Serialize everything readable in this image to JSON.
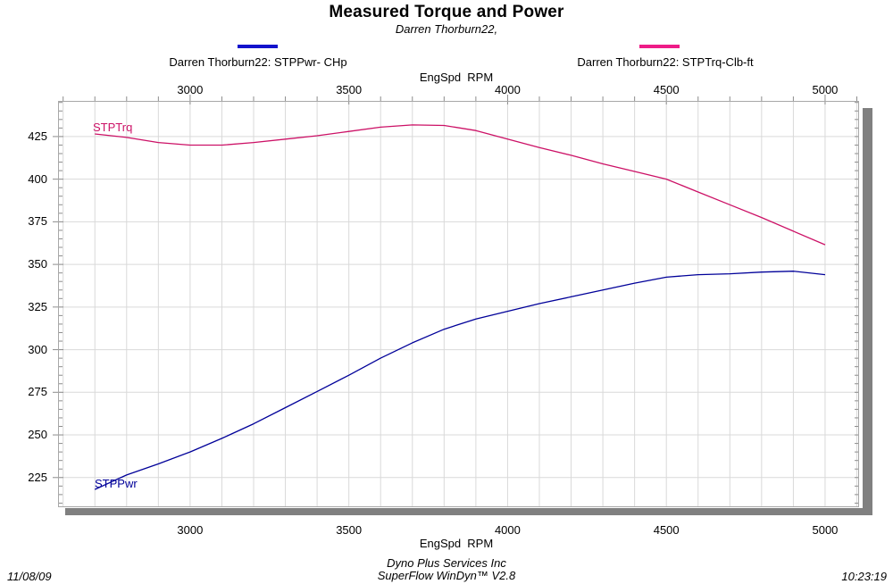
{
  "chart_data": {
    "type": "line",
    "title": "Measured Torque and Power",
    "subtitle": "Darren Thorburn22,",
    "xlabel": "EngSpd  RPM",
    "xlabel_top": "EngSpd  RPM",
    "ylabel": "",
    "x_ticks": [
      3000,
      3500,
      4000,
      4500,
      5000
    ],
    "y_ticks": [
      425,
      400,
      375,
      350,
      325,
      300,
      275,
      250,
      225
    ],
    "xlim": [
      2584,
      5107
    ],
    "ylim": [
      207.6,
      445.9
    ],
    "grid": {
      "x_minor_step": 100,
      "y_minor_step": 5,
      "y_major_step": 25,
      "grid_color": "#d9d9d9",
      "frame_color": "#a8a8a8",
      "tick_color": "#8c8c8c",
      "shadow_color": "#808080"
    },
    "legend_position": "top",
    "legend": [
      {
        "label": "Darren Thorburn22: STPPwr- CHp",
        "color": "#1212cc"
      },
      {
        "label": "Darren Thorburn22: STPTrq-Clb-ft",
        "color": "#ee1c87"
      }
    ],
    "x": [
      2700,
      2800,
      2900,
      3000,
      3100,
      3200,
      3300,
      3400,
      3500,
      3600,
      3700,
      3800,
      3900,
      4000,
      4100,
      4200,
      4300,
      4400,
      4500,
      4600,
      4700,
      4800,
      4900,
      5000
    ],
    "series": [
      {
        "name": "STPPwr",
        "unit": "CHp",
        "color": "#000099",
        "values": [
          218,
          226.5,
          233,
          240,
          248,
          256.5,
          266,
          275.5,
          285,
          295,
          304,
          312,
          318,
          322.5,
          327,
          331,
          335,
          339,
          342.5,
          344,
          344.5,
          345.5,
          346,
          344
        ]
      },
      {
        "name": "STPTrq",
        "unit": "Clb-ft",
        "color": "#cc1166",
        "values": [
          426.5,
          424.5,
          421.5,
          420,
          420,
          421.5,
          423.5,
          425.5,
          428,
          430.5,
          431.8,
          431.5,
          428.5,
          423.5,
          418.5,
          414,
          409,
          404.5,
          400,
          392.5,
          385,
          377.5,
          369.5,
          361.5
        ]
      }
    ]
  },
  "footer": {
    "date": "11/08/09",
    "center_line1": "Dyno Plus Services Inc",
    "center_line2": "SuperFlow WinDyn™ V2.8",
    "time": "10:23:19"
  }
}
